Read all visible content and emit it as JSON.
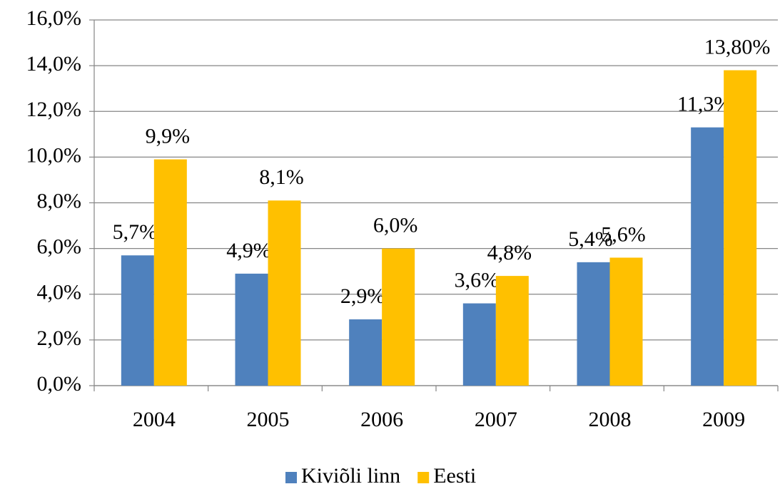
{
  "chart_data": {
    "type": "bar",
    "categories": [
      "2004",
      "2005",
      "2006",
      "2007",
      "2008",
      "2009"
    ],
    "series": [
      {
        "name": "Kiviõli linn",
        "color": "#4f81bd",
        "values": [
          5.7,
          4.9,
          2.9,
          3.6,
          5.4,
          11.3
        ],
        "value_labels": [
          "5,7%",
          "4,9%",
          "2,9%",
          "3,6%",
          "5,4%",
          "11,3%"
        ]
      },
      {
        "name": "Eesti",
        "color": "#ffc000",
        "values": [
          9.9,
          8.1,
          6.0,
          4.8,
          5.6,
          13.8
        ],
        "value_labels": [
          "9,9%",
          "8,1%",
          "6,0%",
          "4,8%",
          "5,6%",
          "13,80%"
        ]
      }
    ],
    "ylim": [
      0,
      16
    ],
    "yticks": [
      {
        "value": 0,
        "label": "0,0%"
      },
      {
        "value": 2,
        "label": "2,0%"
      },
      {
        "value": 4,
        "label": "4,0%"
      },
      {
        "value": 6,
        "label": "6,0%"
      },
      {
        "value": 8,
        "label": "8,0%"
      },
      {
        "value": 10,
        "label": "10,0%"
      },
      {
        "value": 12,
        "label": "12,0%"
      },
      {
        "value": 14,
        "label": "14,0%"
      },
      {
        "value": 16,
        "label": "16,0%"
      }
    ],
    "grid": true,
    "legend": "bottom"
  }
}
